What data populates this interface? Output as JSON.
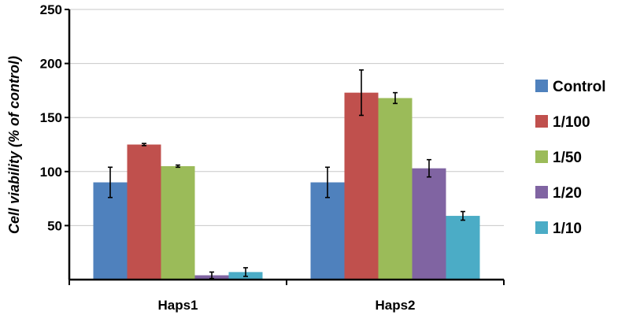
{
  "chart_data": {
    "type": "bar",
    "title": "",
    "xlabel": "",
    "ylabel": "Cell viability (% of control)",
    "ylim": [
      0,
      250
    ],
    "yticks": [
      "50",
      "100",
      "150",
      "200",
      "250"
    ],
    "grid": true,
    "legend_position": "right",
    "categories": [
      "Haps1",
      "Haps2"
    ],
    "series": [
      {
        "name": "Control",
        "color": "#4f81bd",
        "values": [
          90,
          90
        ],
        "errors": [
          14,
          14
        ]
      },
      {
        "name": "1/100",
        "color": "#c0504d",
        "values": [
          125,
          173
        ],
        "errors": [
          1,
          21
        ]
      },
      {
        "name": "1/50",
        "color": "#9bbb59",
        "values": [
          105,
          168
        ],
        "errors": [
          1,
          5
        ]
      },
      {
        "name": "1/20",
        "color": "#8064a2",
        "values": [
          4,
          103
        ],
        "errors": [
          3,
          8
        ]
      },
      {
        "name": "1/10",
        "color": "#4bacc6",
        "values": [
          7,
          59
        ],
        "errors": [
          4,
          4
        ]
      }
    ]
  }
}
